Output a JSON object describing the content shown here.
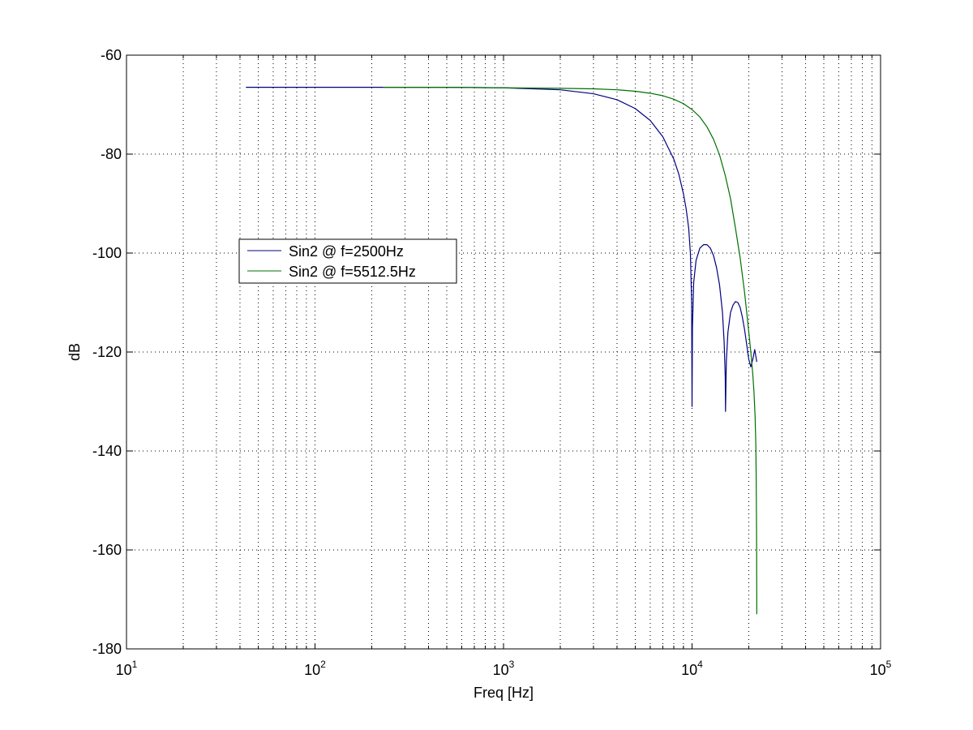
{
  "chart_data": {
    "type": "line",
    "xlabel": "Freq [Hz]",
    "ylabel": "dB",
    "x_scale": "log",
    "xlim": [
      10,
      100000
    ],
    "ylim": [
      -180,
      -60
    ],
    "grid": true,
    "legend_position": "upper-left",
    "x_ticks": [
      {
        "value": 10,
        "base": "10",
        "exp": "1"
      },
      {
        "value": 100,
        "base": "10",
        "exp": "2"
      },
      {
        "value": 1000,
        "base": "10",
        "exp": "3"
      },
      {
        "value": 10000,
        "base": "10",
        "exp": "4"
      },
      {
        "value": 100000,
        "base": "10",
        "exp": "5"
      }
    ],
    "y_ticks": [
      {
        "value": -60,
        "label": "-60"
      },
      {
        "value": -80,
        "label": "-80"
      },
      {
        "value": -100,
        "label": "-100"
      },
      {
        "value": -120,
        "label": "-120"
      },
      {
        "value": -140,
        "label": "-140"
      },
      {
        "value": -160,
        "label": "-160"
      },
      {
        "value": -180,
        "label": "-180"
      }
    ],
    "series": [
      {
        "name": "Sin2 @ f=2500Hz",
        "color": "#000080",
        "x": [
          43,
          100,
          500,
          1000,
          2000,
          3000,
          4000,
          5000,
          6000,
          7000,
          8000,
          8500,
          9000,
          9300,
          9600,
          9800,
          9950,
          10000,
          10050,
          10200,
          10500,
          11000,
          11500,
          12000,
          12500,
          13000,
          13500,
          14000,
          14500,
          14800,
          15000,
          15050,
          15200,
          15500,
          16000,
          16500,
          17000,
          17500,
          18000,
          18500,
          19000,
          19500,
          20000,
          20500,
          21000,
          21500,
          22050
        ],
        "y": [
          -66.5,
          -66.5,
          -66.5,
          -66.6,
          -67.0,
          -67.8,
          -69.0,
          -70.8,
          -73.2,
          -76.5,
          -81.0,
          -84.0,
          -88.0,
          -91.0,
          -95.0,
          -100.0,
          -110.0,
          -131.0,
          -115.0,
          -106.0,
          -101.5,
          -99.0,
          -98.3,
          -98.3,
          -99.0,
          -100.5,
          -103.0,
          -106.5,
          -112.0,
          -118.0,
          -125.0,
          -132.0,
          -122.0,
          -116.0,
          -112.0,
          -110.5,
          -109.8,
          -110.0,
          -111.0,
          -113.0,
          -115.5,
          -118.5,
          -121.5,
          -123.0,
          -121.5,
          -119.5,
          -122.0
        ]
      },
      {
        "name": "Sin2 @ f=5512.5Hz",
        "color": "#007000",
        "x": [
          230,
          500,
          1000,
          2000,
          3000,
          4000,
          5000,
          6000,
          7000,
          8000,
          9000,
          10000,
          11000,
          12000,
          13000,
          14000,
          15000,
          16000,
          17000,
          18000,
          19000,
          19500,
          20000,
          20500,
          21000,
          21300,
          21600,
          21800,
          21900,
          22000,
          22050
        ],
        "y": [
          -66.5,
          -66.5,
          -66.6,
          -66.7,
          -66.8,
          -67.0,
          -67.3,
          -67.7,
          -68.2,
          -68.9,
          -69.8,
          -71.0,
          -72.5,
          -74.5,
          -77.0,
          -80.2,
          -84.3,
          -89.0,
          -95.0,
          -101.0,
          -108.0,
          -112.0,
          -116.0,
          -120.0,
          -124.5,
          -128.0,
          -133.0,
          -139.0,
          -146.0,
          -158.0,
          -173.0
        ]
      }
    ]
  }
}
